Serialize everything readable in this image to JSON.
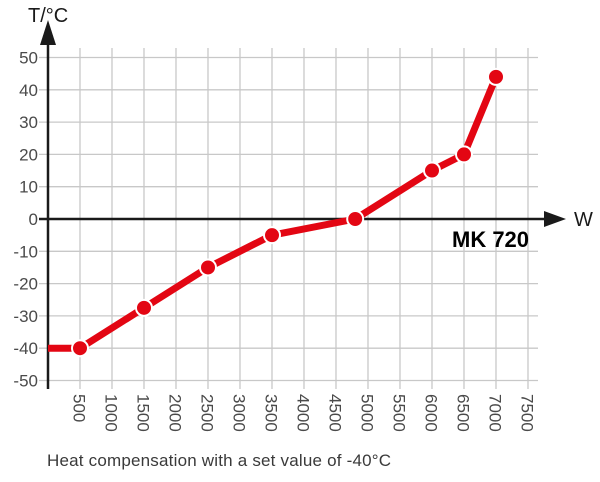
{
  "chart_data": {
    "type": "line",
    "title": "",
    "xlabel": "W",
    "ylabel": "T/°C",
    "series_label": "MK 720",
    "caption": "Heat compensation with a set value of -40°C",
    "x": [
      500,
      1500,
      2500,
      3500,
      4800,
      6000,
      6500,
      7000
    ],
    "y": [
      -40,
      -27.5,
      -15,
      -5,
      0,
      15,
      20,
      44
    ],
    "line_starts_at_axis": true,
    "x_ticks": [
      500,
      1000,
      1500,
      2000,
      2500,
      3000,
      3500,
      4000,
      4500,
      5000,
      5500,
      6000,
      6500,
      7000,
      7500
    ],
    "y_ticks": [
      50,
      40,
      30,
      20,
      10,
      0,
      -10,
      -20,
      -30,
      -40,
      -50
    ],
    "xlim": [
      0,
      7500
    ],
    "ylim": [
      -50,
      50
    ],
    "grid": true,
    "legend_position": "none",
    "colors": {
      "line": "#e30613",
      "marker": "#e30613",
      "marker_ring": "#ffffff",
      "grid": "#c8c8c8",
      "axis": "#1a1a1a",
      "tick_text": "#4a4a4a",
      "caption_text": "#3a3a3a"
    }
  }
}
